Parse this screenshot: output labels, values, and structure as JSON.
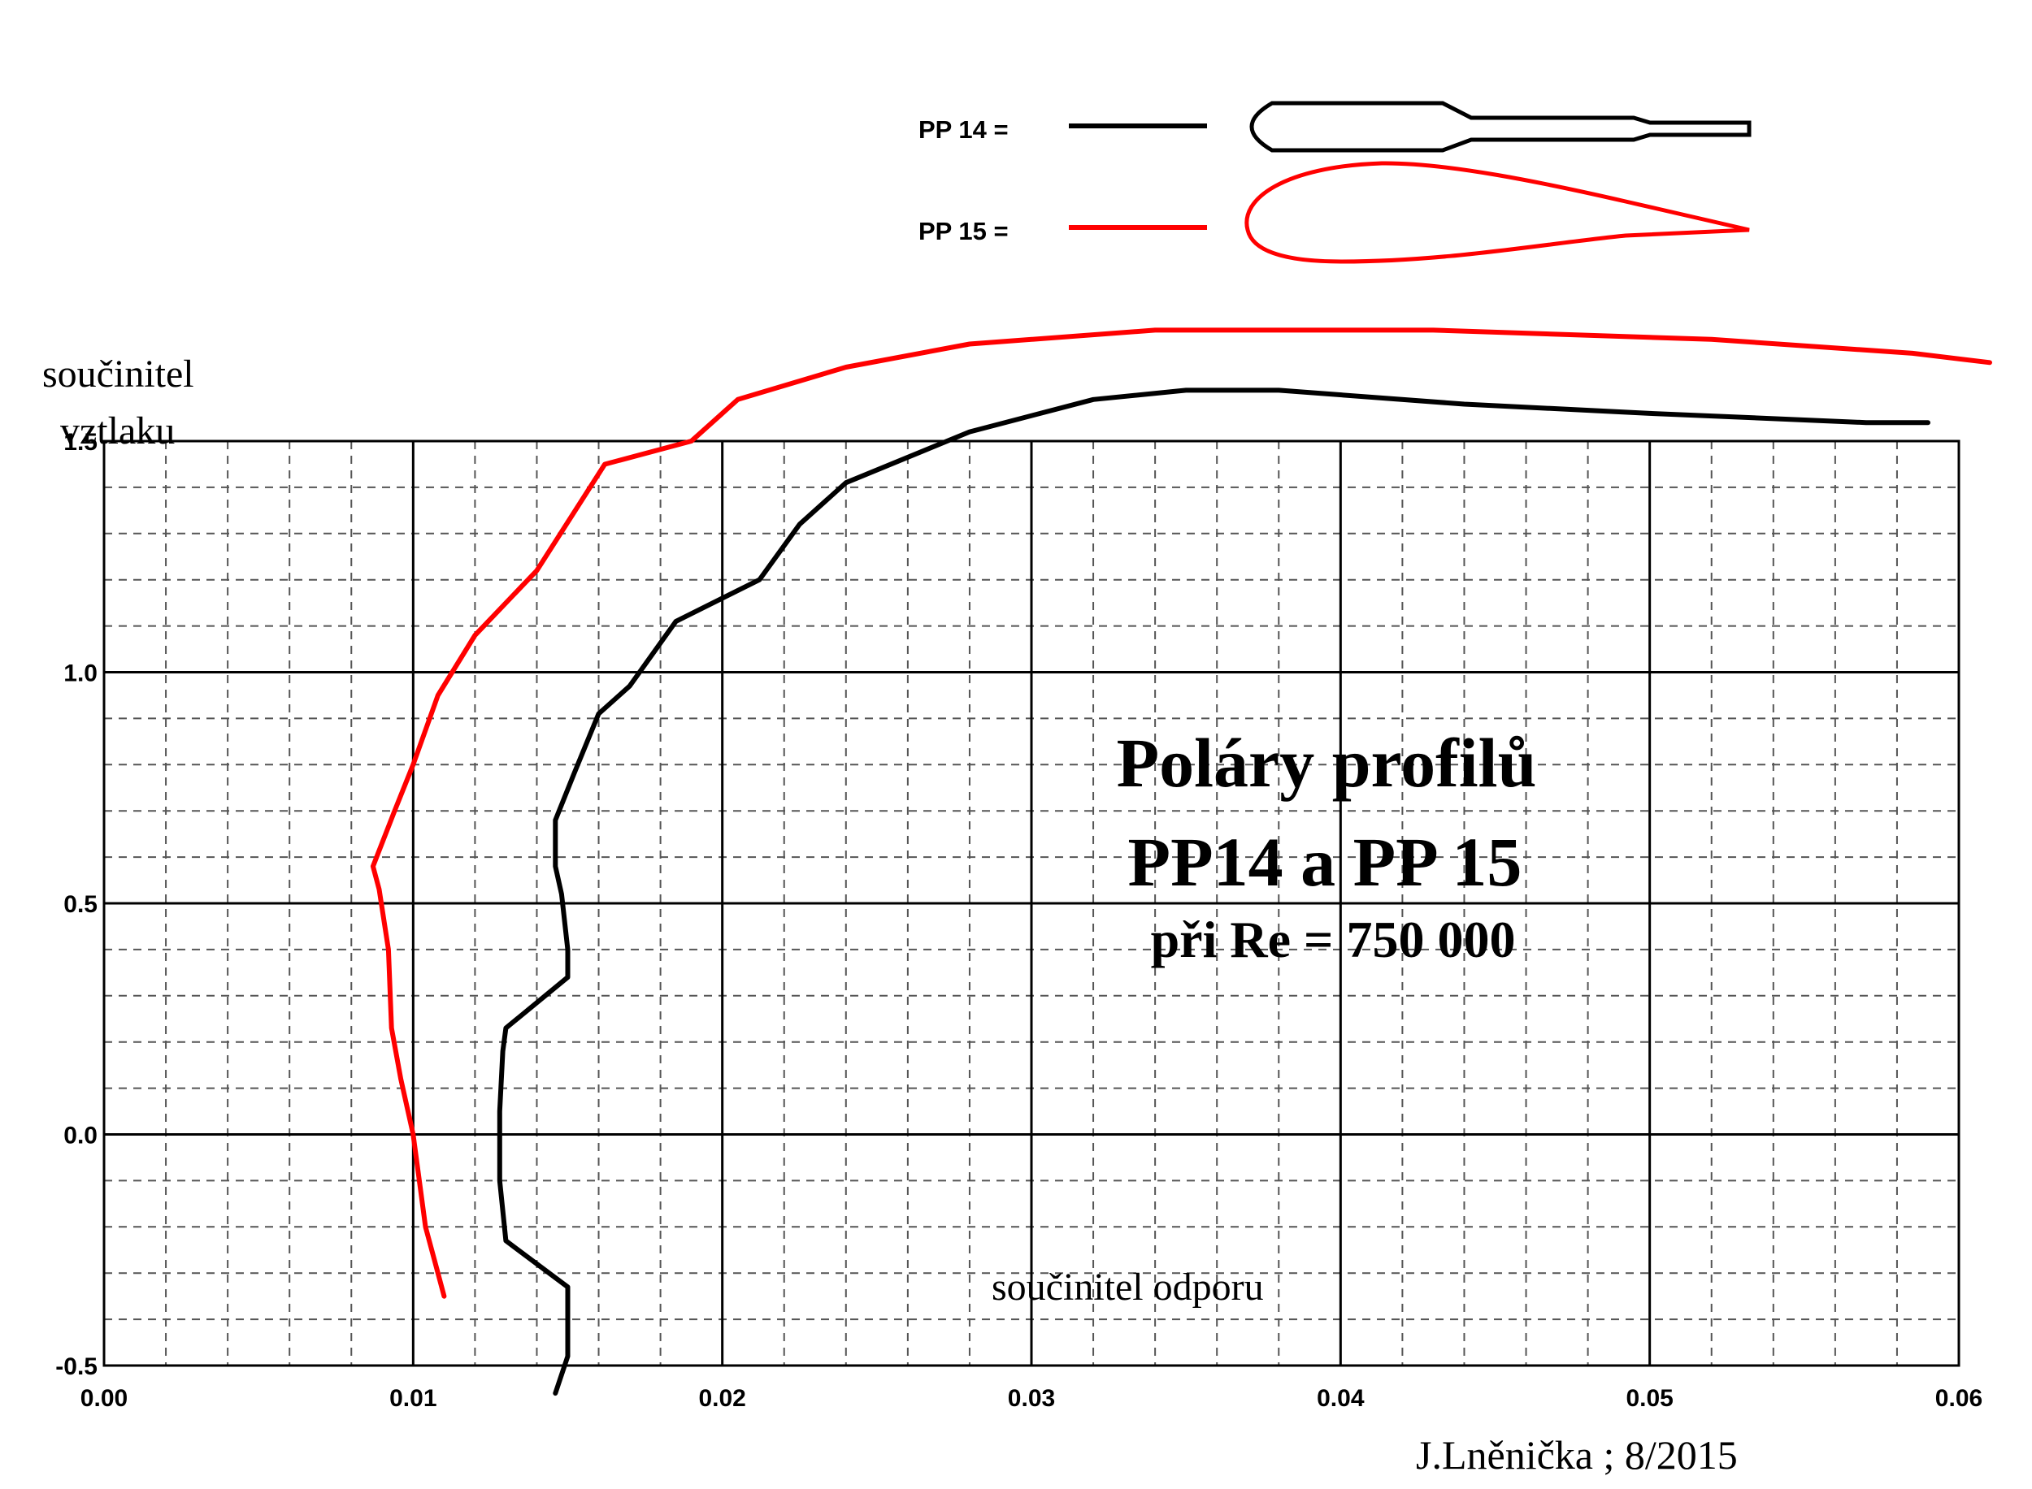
{
  "chart_data": {
    "type": "line",
    "title": "Poláry  profilů",
    "subtitle": "PP14 a PP 15",
    "condition": "při  Re = 750 000",
    "xlabel": "součinitel  odporu",
    "ylabel_lines": [
      "součinitel",
      "vztlaku"
    ],
    "author": "J.Lněnička ; 8/2015",
    "xlim": [
      0.0,
      0.06
    ],
    "ylim": [
      -0.5,
      1.5
    ],
    "x_ticks": [
      "0.00",
      "0.01",
      "0.02",
      "0.03",
      "0.04",
      "0.05",
      "0.06"
    ],
    "y_ticks": [
      "-0.5",
      "0.0",
      "0.5",
      "1.0",
      "1.5"
    ],
    "x_tick_values": [
      0.0,
      0.01,
      0.02,
      0.03,
      0.04,
      0.05,
      0.06
    ],
    "y_tick_values": [
      -0.5,
      0.0,
      0.5,
      1.0,
      1.5
    ],
    "grid": true,
    "legend_position": "top-center",
    "series": [
      {
        "name": "PP  14 =",
        "color": "#000000",
        "points": [
          [
            0.0146,
            -0.56
          ],
          [
            0.015,
            -0.48
          ],
          [
            0.015,
            -0.33
          ],
          [
            0.013,
            -0.23
          ],
          [
            0.0128,
            -0.1
          ],
          [
            0.0128,
            0.05
          ],
          [
            0.0129,
            0.18
          ],
          [
            0.013,
            0.23
          ],
          [
            0.015,
            0.34
          ],
          [
            0.015,
            0.4
          ],
          [
            0.0148,
            0.52
          ],
          [
            0.0146,
            0.58
          ],
          [
            0.0146,
            0.68
          ],
          [
            0.0152,
            0.78
          ],
          [
            0.016,
            0.91
          ],
          [
            0.017,
            0.97
          ],
          [
            0.0185,
            1.11
          ],
          [
            0.0212,
            1.2
          ],
          [
            0.0225,
            1.32
          ],
          [
            0.024,
            1.41
          ],
          [
            0.028,
            1.52
          ],
          [
            0.032,
            1.59
          ],
          [
            0.035,
            1.61
          ],
          [
            0.038,
            1.61
          ],
          [
            0.044,
            1.58
          ],
          [
            0.05,
            1.56
          ],
          [
            0.057,
            1.54
          ],
          [
            0.059,
            1.54
          ]
        ]
      },
      {
        "name": "PP  15 =",
        "color": "#ff0000",
        "points": [
          [
            0.011,
            -0.35
          ],
          [
            0.0108,
            -0.3
          ],
          [
            0.0104,
            -0.2
          ],
          [
            0.0102,
            -0.1
          ],
          [
            0.01,
            0.0
          ],
          [
            0.0096,
            0.12
          ],
          [
            0.0093,
            0.23
          ],
          [
            0.0092,
            0.4
          ],
          [
            0.0089,
            0.53
          ],
          [
            0.0087,
            0.58
          ],
          [
            0.0094,
            0.7
          ],
          [
            0.01,
            0.8
          ],
          [
            0.0108,
            0.95
          ],
          [
            0.012,
            1.08
          ],
          [
            0.014,
            1.22
          ],
          [
            0.0162,
            1.45
          ],
          [
            0.019,
            1.5
          ],
          [
            0.0205,
            1.59
          ],
          [
            0.024,
            1.66
          ],
          [
            0.028,
            1.71
          ],
          [
            0.034,
            1.74
          ],
          [
            0.043,
            1.74
          ],
          [
            0.052,
            1.72
          ],
          [
            0.0585,
            1.69
          ],
          [
            0.061,
            1.67
          ]
        ]
      }
    ]
  }
}
